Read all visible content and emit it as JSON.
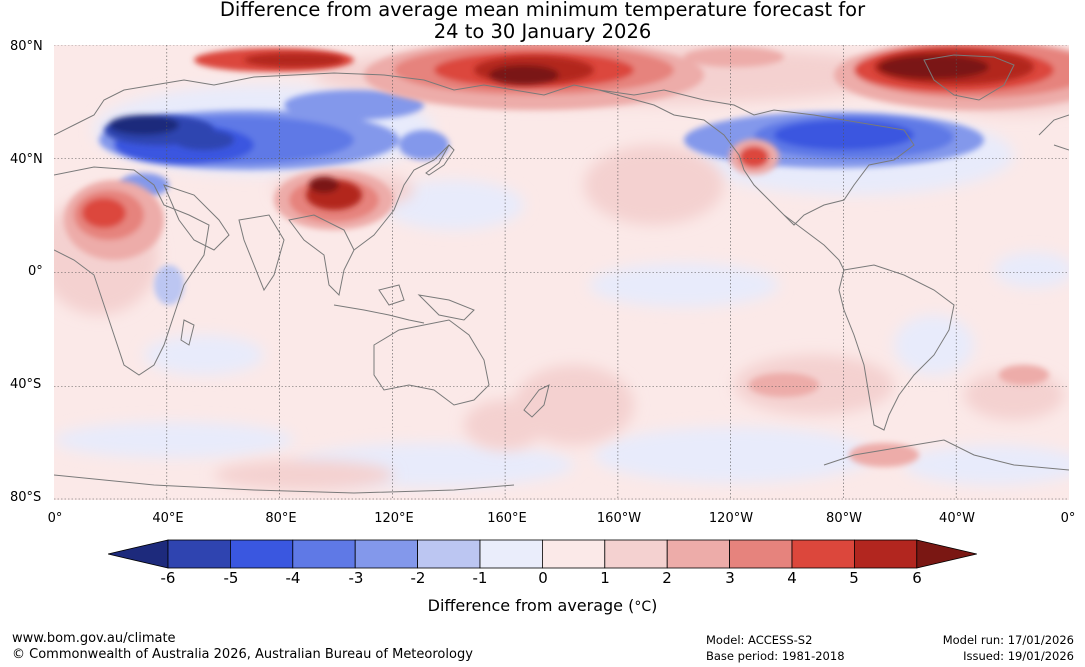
{
  "title": {
    "line1": "Difference from average mean minimum temperature forecast for",
    "line2": "24 to 30 January 2026"
  },
  "latitude_labels": [
    "80°N",
    "40°N",
    "0°",
    "40°S",
    "80°S"
  ],
  "longitude_labels": [
    "0°",
    "40°E",
    "80°E",
    "120°E",
    "160°E",
    "160°W",
    "120°W",
    "80°W",
    "40°W",
    "0°"
  ],
  "map_data": {
    "variable": "Difference from average mean minimum temperature",
    "units": "°C",
    "anomaly_regions": [
      {
        "region": "Arctic Russia / Siberian coast",
        "anomaly_c": 5
      },
      {
        "region": "Arctic Canada / Greenland",
        "anomaly_c": 6
      },
      {
        "region": "Northern Europe / Western Siberia",
        "anomaly_c": -6
      },
      {
        "region": "Central Siberia",
        "anomaly_c": -3
      },
      {
        "region": "Western China / Mongolia",
        "anomaly_c": 6
      },
      {
        "region": "Sahara / North Africa",
        "anomaly_c": 4
      },
      {
        "region": "Western Canada / Northern USA",
        "anomaly_c": -4
      },
      {
        "region": "Eastern Canada",
        "anomaly_c": -3
      },
      {
        "region": "Southwest USA",
        "anomaly_c": 4
      },
      {
        "region": "Tropical Pacific",
        "anomaly_c": -1
      },
      {
        "region": "Southern Ocean",
        "anomaly_c": -1
      },
      {
        "region": "Antarctic Peninsula",
        "anomaly_c": 3
      }
    ]
  },
  "colorbar": {
    "ticks": [
      "-6",
      "-5",
      "-4",
      "-3",
      "-2",
      "-1",
      "0",
      "1",
      "2",
      "3",
      "4",
      "5",
      "6"
    ],
    "colors": [
      "#1d2a7c",
      "#2f44b0",
      "#3a57e0",
      "#5f79e6",
      "#8398eb",
      "#bcc6f2",
      "#eaedfb",
      "#fbe9e8",
      "#f4d1d0",
      "#edaca9",
      "#e6837d",
      "#dc473c",
      "#b2261f",
      "#7a1713"
    ],
    "label": "Difference from average (°C)",
    "label_text": "Difference from average (",
    "label_unit": "°C",
    "label_close": ")"
  },
  "footer": {
    "url": "www.bom.gov.au/climate",
    "copyright": "© Commonwealth of Australia 2026, Australian Bureau of Meteorology",
    "model": "Model: ACCESS-S2",
    "base_period": "Base period: 1981-2018",
    "model_run": "Model run: 17/01/2026",
    "issued": "Issued: 19/01/2026"
  }
}
